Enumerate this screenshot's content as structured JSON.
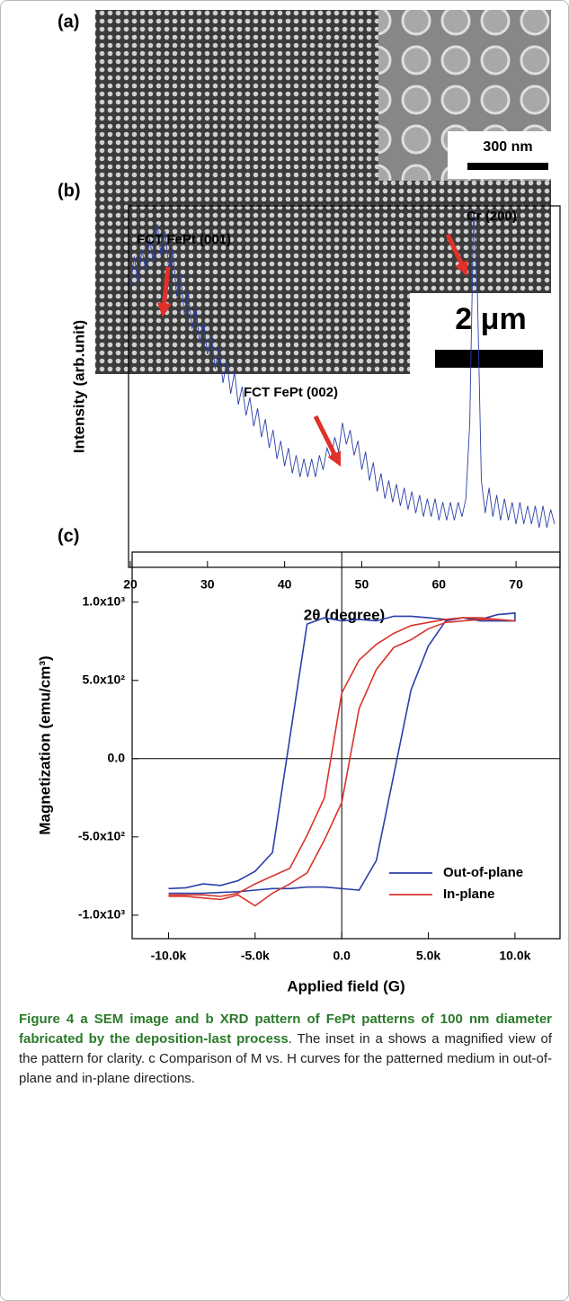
{
  "figure_a": {
    "panel_label": "(a)",
    "inset_scale": "300 nm",
    "scale": "2 μm"
  },
  "chart_data": [
    {
      "type": "line",
      "panel_label": "(b)",
      "xlabel": "2θ (degree)",
      "ylabel": "Intensity (arb.unit)",
      "color": "#2b3fa8",
      "annotations": [
        "FCT FePt (001)",
        "FCT FePt (002)",
        "Cr (200)"
      ],
      "xlim": [
        20,
        75
      ],
      "xticks": [
        20,
        30,
        40,
        50,
        60,
        70
      ],
      "ylim": [
        0,
        100
      ],
      "x": [
        20,
        20.5,
        21,
        21.5,
        22,
        22.5,
        23,
        23.5,
        24,
        24.5,
        25,
        25.5,
        26,
        26.5,
        27,
        27.5,
        28,
        28.5,
        29,
        29.5,
        30,
        30.5,
        31,
        31.5,
        32,
        32.5,
        33,
        33.5,
        34,
        34.5,
        35,
        35.5,
        36,
        36.5,
        37,
        37.5,
        38,
        38.5,
        39,
        39.5,
        40,
        40.5,
        41,
        41.5,
        42,
        42.5,
        43,
        43.5,
        44,
        44.5,
        45,
        45.5,
        46,
        46.5,
        47,
        47.5,
        48,
        48.5,
        49,
        49.5,
        50,
        50.5,
        51,
        51.5,
        52,
        52.5,
        53,
        53.5,
        54,
        54.5,
        55,
        55.5,
        56,
        56.5,
        57,
        57.5,
        58,
        58.5,
        59,
        59.5,
        60,
        60.5,
        61,
        61.5,
        62,
        62.5,
        63,
        63.5,
        64,
        64.5,
        65,
        65.5,
        66,
        66.5,
        67,
        67.5,
        68,
        68.5,
        69,
        69.5,
        70,
        70.5,
        71,
        71.5,
        72,
        72.5,
        73,
        73.5,
        74,
        74.5,
        75
      ],
      "values": [
        78,
        86,
        79,
        88,
        82,
        91,
        84,
        95,
        86,
        93,
        82,
        88,
        75,
        81,
        70,
        76,
        66,
        72,
        62,
        68,
        59,
        64,
        55,
        61,
        51,
        57,
        48,
        54,
        45,
        50,
        42,
        47,
        39,
        44,
        36,
        41,
        33,
        38,
        30,
        35,
        28,
        33,
        26,
        31,
        25,
        30,
        25,
        30,
        25,
        31,
        27,
        33,
        30,
        36,
        32,
        40,
        34,
        38,
        31,
        35,
        27,
        32,
        24,
        29,
        21,
        26,
        19,
        24,
        18,
        23,
        17,
        22,
        16,
        21,
        15,
        20,
        14,
        19,
        14,
        19,
        13,
        18,
        13,
        18,
        13,
        18,
        14,
        19,
        40,
        99,
        75,
        24,
        15,
        22,
        14,
        20,
        13,
        19,
        13,
        18,
        12,
        18,
        12,
        17,
        12,
        17,
        11,
        17,
        11,
        16,
        12
      ]
    },
    {
      "type": "line",
      "panel_label": "(c)",
      "xlabel": "Applied field (G)",
      "ylabel": "Magnetization (emu/cm³)",
      "xlim": [
        -12100,
        12600
      ],
      "ylim": [
        -1150,
        1320
      ],
      "legend": "lower right",
      "xticks": [
        {
          "value": -10000,
          "label": "-10.0k"
        },
        {
          "value": -5000,
          "label": "-5.0k"
        },
        {
          "value": 0,
          "label": "0.0"
        },
        {
          "value": 5000,
          "label": "5.0k"
        },
        {
          "value": 10000,
          "label": "10.0k"
        }
      ],
      "yticks": [
        {
          "value": -1000,
          "label": "-1.0x10³"
        },
        {
          "value": -500,
          "label": "-5.0x10²"
        },
        {
          "value": 0,
          "label": "0.0"
        },
        {
          "value": 500,
          "label": "5.0x10²"
        },
        {
          "value": 1000,
          "label": "1.0x10³"
        }
      ],
      "series": [
        {
          "name": "Out-of-plane",
          "color": "#2b3fa8",
          "x": [
            -10000,
            -9000,
            -8000,
            -7000,
            -6000,
            -5000,
            -4000,
            -2000,
            -1000,
            0,
            1000,
            2000,
            3000,
            4000,
            5000,
            6000,
            7000,
            8000,
            9000,
            10000,
            10000,
            9000,
            8000,
            7000,
            6000,
            5000,
            4000,
            2000,
            1000,
            0,
            -1000,
            -2000,
            -3000,
            -4000,
            -5000,
            -6000,
            -7000,
            -8000,
            -9000,
            -10000
          ],
          "values": [
            -830,
            -825,
            -800,
            -810,
            -780,
            -720,
            -600,
            860,
            900,
            880,
            890,
            880,
            910,
            910,
            900,
            890,
            900,
            880,
            880,
            880,
            930,
            920,
            890,
            900,
            880,
            720,
            440,
            -650,
            -840,
            -830,
            -820,
            -820,
            -830,
            -830,
            -840,
            -850,
            -855,
            -860,
            -860,
            -860
          ]
        },
        {
          "name": "In-plane",
          "color": "#d9342b",
          "x": [
            -10000,
            -9000,
            -8000,
            -7000,
            -6000,
            -5000,
            -4000,
            -3000,
            -2000,
            -1000,
            0,
            1000,
            2000,
            3000,
            4000,
            5000,
            6000,
            7000,
            8000,
            9000,
            10000,
            10000,
            9000,
            8000,
            7000,
            6000,
            5000,
            4000,
            3000,
            2000,
            1000,
            0,
            -1000,
            -2000,
            -3000,
            -4000,
            -5000,
            -6000,
            -7000,
            -8000,
            -9000,
            -10000
          ],
          "values": [
            -870,
            -870,
            -870,
            -880,
            -860,
            -800,
            -750,
            -700,
            -490,
            -250,
            420,
            630,
            730,
            800,
            850,
            870,
            890,
            900,
            900,
            890,
            880,
            880,
            890,
            890,
            880,
            870,
            830,
            760,
            710,
            570,
            320,
            -280,
            -520,
            -730,
            -800,
            -860,
            -940,
            -870,
            -900,
            -890,
            -880,
            -880
          ]
        }
      ]
    }
  ],
  "caption": {
    "title": "Figure 4 a SEM image and b XRD pattern of FePt patterns of 100 nm diameter fabricated by the deposition-last process",
    "text": ". The inset in a shows a magnified view of the pattern for clarity. c Comparison of M vs. H curves for the patterned medium in out-of-plane and in-plane directions."
  }
}
